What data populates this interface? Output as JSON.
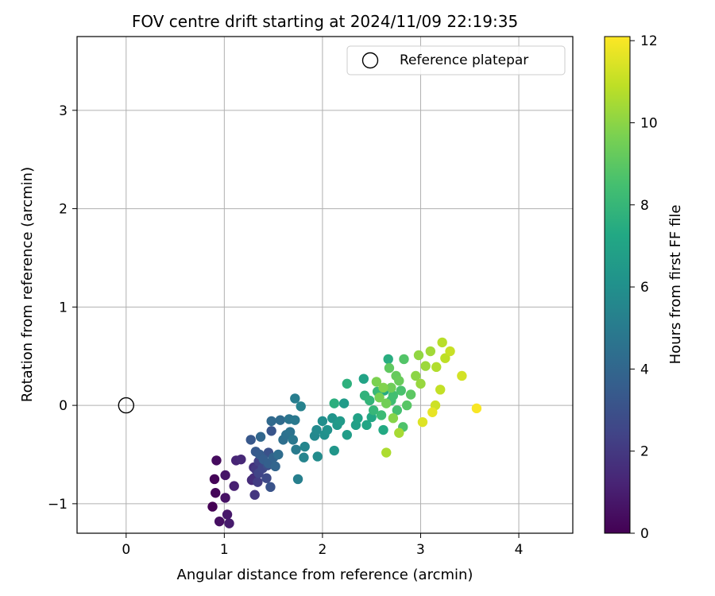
{
  "chart_data": {
    "type": "scatter",
    "title": "FOV centre drift starting at 2024/11/09 22:19:35",
    "xlabel": "Angular distance from reference (arcmin)",
    "ylabel": "Rotation from reference (arcmin)",
    "xlim": [
      -0.5,
      4.55
    ],
    "ylim": [
      -1.3,
      3.75
    ],
    "xticks": [
      0,
      1,
      2,
      3,
      4
    ],
    "yticks": [
      -1,
      0,
      1,
      2,
      3
    ],
    "xtick_labels": [
      "0",
      "1",
      "2",
      "3",
      "4"
    ],
    "ytick_labels": [
      "−1",
      "0",
      "1",
      "2",
      "3"
    ],
    "grid": true,
    "legend": {
      "placement": "top-right",
      "label": "Reference platepar"
    },
    "reference_point": {
      "x": 0,
      "y": 0
    },
    "colorbar": {
      "label": "Hours from first FF file",
      "colormap": "viridis",
      "range": [
        0,
        12.1
      ],
      "ticks": [
        0,
        2,
        4,
        6,
        8,
        10,
        12
      ],
      "tick_labels": [
        "0",
        "2",
        "4",
        "6",
        "8",
        "10",
        "12"
      ]
    },
    "points": [
      [
        0.88,
        -1.03,
        0.0
      ],
      [
        0.9,
        -0.75,
        0.1
      ],
      [
        0.91,
        -0.89,
        0.2
      ],
      [
        0.92,
        -0.56,
        0.35
      ],
      [
        0.95,
        -1.18,
        0.5
      ],
      [
        1.01,
        -0.94,
        0.6
      ],
      [
        1.01,
        -0.71,
        0.7
      ],
      [
        1.03,
        -1.11,
        0.8
      ],
      [
        1.05,
        -1.2,
        0.9
      ],
      [
        1.1,
        -0.82,
        1.05
      ],
      [
        1.12,
        -0.56,
        1.2
      ],
      [
        1.17,
        -0.55,
        1.35
      ],
      [
        1.28,
        -0.76,
        1.5
      ],
      [
        1.3,
        -0.74,
        1.6
      ],
      [
        1.3,
        -0.63,
        1.75
      ],
      [
        1.31,
        -0.91,
        1.9
      ],
      [
        1.32,
        -0.65,
        2.0
      ],
      [
        1.34,
        -0.78,
        2.15
      ],
      [
        1.35,
        -0.57,
        2.3
      ],
      [
        1.35,
        -0.69,
        2.45
      ],
      [
        1.39,
        -0.64,
        2.55
      ],
      [
        1.43,
        -0.74,
        2.7
      ],
      [
        1.44,
        -0.61,
        2.85
      ],
      [
        1.45,
        -0.48,
        3.0
      ],
      [
        1.47,
        -0.83,
        3.1
      ],
      [
        1.48,
        -0.26,
        3.2
      ],
      [
        1.27,
        -0.35,
        3.3
      ],
      [
        1.32,
        -0.47,
        3.4
      ],
      [
        1.36,
        -0.5,
        3.5
      ],
      [
        1.4,
        -0.55,
        3.6
      ],
      [
        1.45,
        -0.59,
        3.7
      ],
      [
        1.5,
        -0.53,
        3.8
      ],
      [
        1.52,
        -0.62,
        3.9
      ],
      [
        1.37,
        -0.32,
        4.0
      ],
      [
        1.48,
        -0.16,
        4.1
      ],
      [
        1.57,
        -0.15,
        4.2
      ],
      [
        1.55,
        -0.5,
        4.3
      ],
      [
        1.6,
        -0.35,
        4.4
      ],
      [
        1.63,
        -0.3,
        4.5
      ],
      [
        1.67,
        -0.27,
        4.6
      ],
      [
        1.66,
        -0.14,
        4.7
      ],
      [
        1.7,
        -0.35,
        4.8
      ],
      [
        1.72,
        -0.15,
        4.9
      ],
      [
        1.73,
        -0.45,
        5.0
      ],
      [
        1.72,
        0.07,
        5.1
      ],
      [
        1.75,
        -0.75,
        5.2
      ],
      [
        1.78,
        -0.01,
        5.3
      ],
      [
        1.81,
        -0.53,
        5.4
      ],
      [
        1.82,
        -0.42,
        5.5
      ],
      [
        1.92,
        -0.31,
        5.6
      ],
      [
        1.94,
        -0.25,
        5.7
      ],
      [
        1.95,
        -0.52,
        5.8
      ],
      [
        2.0,
        -0.16,
        5.9
      ],
      [
        2.02,
        -0.3,
        6.0
      ],
      [
        2.05,
        -0.25,
        6.1
      ],
      [
        2.1,
        -0.13,
        6.2
      ],
      [
        2.12,
        -0.46,
        6.3
      ],
      [
        2.15,
        -0.2,
        6.4
      ],
      [
        2.18,
        -0.16,
        6.5
      ],
      [
        2.22,
        0.02,
        6.6
      ],
      [
        2.25,
        -0.3,
        6.7
      ],
      [
        2.34,
        -0.2,
        6.8
      ],
      [
        2.36,
        -0.13,
        6.9
      ],
      [
        2.42,
        0.27,
        7.0
      ],
      [
        2.45,
        -0.2,
        7.1
      ],
      [
        2.5,
        -0.12,
        7.2
      ],
      [
        2.62,
        -0.25,
        7.3
      ],
      [
        2.63,
        0.15,
        7.4
      ],
      [
        2.67,
        0.47,
        7.5
      ],
      [
        2.12,
        0.02,
        7.6
      ],
      [
        2.25,
        0.22,
        7.7
      ],
      [
        2.43,
        0.1,
        7.8
      ],
      [
        2.48,
        0.05,
        7.9
      ],
      [
        2.52,
        -0.05,
        8.0
      ],
      [
        2.56,
        0.14,
        8.1
      ],
      [
        2.6,
        -0.1,
        8.2
      ],
      [
        2.7,
        0.05,
        8.3
      ],
      [
        2.72,
        0.1,
        8.4
      ],
      [
        2.76,
        -0.05,
        8.5
      ],
      [
        2.8,
        0.15,
        8.6
      ],
      [
        2.82,
        -0.22,
        8.7
      ],
      [
        2.83,
        0.47,
        8.8
      ],
      [
        2.86,
        0.0,
        8.9
      ],
      [
        2.9,
        0.11,
        9.0
      ],
      [
        2.68,
        0.38,
        9.1
      ],
      [
        2.75,
        0.3,
        9.2
      ],
      [
        2.78,
        0.25,
        9.3
      ],
      [
        2.7,
        0.18,
        9.4
      ],
      [
        2.65,
        0.02,
        9.5
      ],
      [
        2.58,
        0.08,
        9.6
      ],
      [
        2.55,
        0.24,
        9.7
      ],
      [
        2.62,
        0.18,
        9.8
      ],
      [
        2.72,
        -0.13,
        9.9
      ],
      [
        2.95,
        0.3,
        10.0
      ],
      [
        2.98,
        0.51,
        10.1
      ],
      [
        3.0,
        0.22,
        10.2
      ],
      [
        3.05,
        0.4,
        10.3
      ],
      [
        3.1,
        0.55,
        10.4
      ],
      [
        2.78,
        -0.28,
        10.5
      ],
      [
        2.65,
        -0.48,
        10.6
      ],
      [
        3.16,
        0.39,
        10.7
      ],
      [
        3.22,
        0.64,
        10.8
      ],
      [
        3.25,
        0.48,
        10.9
      ],
      [
        3.2,
        0.16,
        11.0
      ],
      [
        3.3,
        0.55,
        11.1
      ],
      [
        3.15,
        0.0,
        11.2
      ],
      [
        3.42,
        0.3,
        11.3
      ],
      [
        3.02,
        -0.17,
        11.5
      ],
      [
        3.12,
        -0.07,
        11.7
      ],
      [
        3.57,
        -0.03,
        12.0
      ]
    ]
  }
}
